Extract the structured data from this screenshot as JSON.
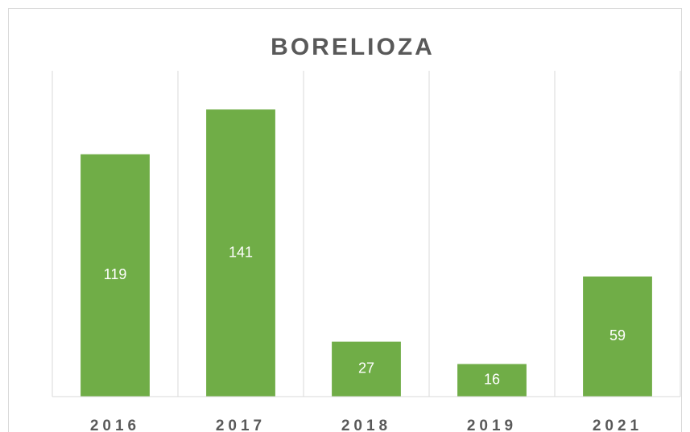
{
  "chart_data": {
    "type": "bar",
    "title": "BORELIOZA",
    "categories": [
      "2016",
      "2017",
      "2018",
      "2019",
      "2021"
    ],
    "values": [
      119,
      141,
      27,
      16,
      59
    ],
    "color": "#70ad47",
    "ylim": [
      0,
      160
    ]
  }
}
